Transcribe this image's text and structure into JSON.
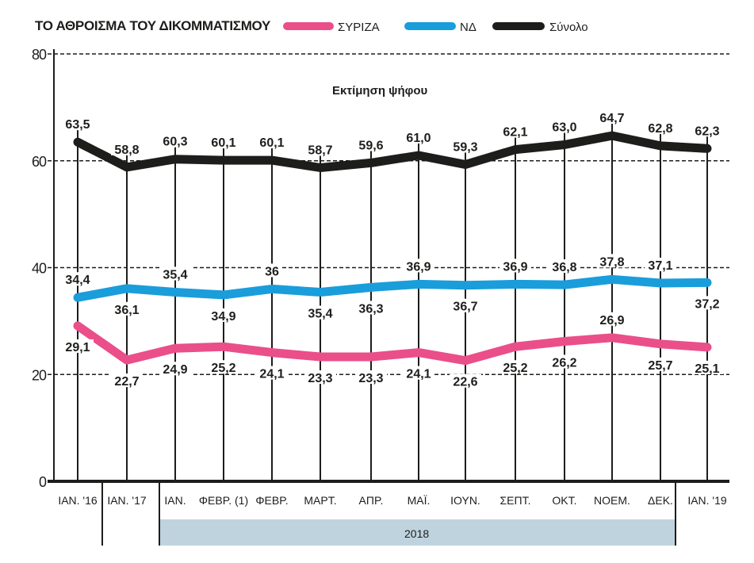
{
  "chart_data": {
    "type": "line",
    "title": "ΤΟ ΑΘΡΟΙΣΜΑ ΤΟΥ ΔΙΚΟΜΜΑΤΙΣΜΟΥ",
    "subtitle": "Εκτίμηση ψήφου",
    "xlabel": "",
    "ylabel": "",
    "ylim": [
      0,
      80
    ],
    "yticks": [
      0,
      20,
      40,
      60,
      80
    ],
    "grid": "horizontal-dashed",
    "legend_position": "top",
    "categories": [
      "ΙΑΝ. '16",
      "ΙΑΝ. '17",
      "ΙΑΝ.",
      "ΦΕΒΡ. (1)",
      "ΦΕΒΡ.",
      "ΜΑΡΤ.",
      "ΑΠΡ.",
      "ΜΑΪ.",
      "ΙΟΥΝ.",
      "ΣΕΠΤ.",
      "ΟΚΤ.",
      "ΝΟΕΜ.",
      "ΔΕΚ.",
      "ΙΑΝ. '19"
    ],
    "category_groups": [
      {
        "label": "2018",
        "from_index": 2,
        "to_index": 12
      }
    ],
    "series": [
      {
        "name": "ΣΥΡΙΖΑ",
        "color": "#ea4f8a",
        "values": [
          29.1,
          22.7,
          24.9,
          25.2,
          24.1,
          23.3,
          23.3,
          24.1,
          22.6,
          25.2,
          26.2,
          26.9,
          25.7,
          25.1
        ],
        "labels": [
          "29,1",
          "22,7",
          "24,9",
          "25,2",
          "24,1",
          "23,3",
          "23,3",
          "24,1",
          "22,6",
          "25,2",
          "26,2",
          "26,9",
          "25,7",
          "25,1"
        ],
        "label_side": [
          "below",
          "below",
          "below",
          "below",
          "below",
          "below",
          "below",
          "below",
          "below",
          "below",
          "below",
          "above",
          "below",
          "below"
        ]
      },
      {
        "name": "ΝΔ",
        "color": "#1a9ddb",
        "values": [
          34.4,
          36.1,
          35.4,
          34.9,
          36,
          35.4,
          36.3,
          36.9,
          36.7,
          36.9,
          36.8,
          37.8,
          37.1,
          37.2
        ],
        "labels": [
          "34,4",
          "36,1",
          "35,4",
          "34,9",
          "36",
          "35,4",
          "36,3",
          "36,9",
          "36,7",
          "36,9",
          "36,8",
          "37,8",
          "37,1",
          "37,2"
        ],
        "label_side": [
          "above",
          "below",
          "above",
          "below",
          "above",
          "below",
          "below",
          "above",
          "below",
          "above",
          "above",
          "above",
          "above",
          "below"
        ]
      },
      {
        "name": "Σύνολο",
        "color": "#1d1d1b",
        "values": [
          63.5,
          58.8,
          60.3,
          60.1,
          60.1,
          58.7,
          59.6,
          61.0,
          59.3,
          62.1,
          63.0,
          64.7,
          62.8,
          62.3
        ],
        "labels": [
          "63,5",
          "58,8",
          "60,3",
          "60,1",
          "60,1",
          "58,7",
          "59,6",
          "61,0",
          "59,3",
          "62,1",
          "63,0",
          "64,7",
          "62,8",
          "62,3"
        ],
        "label_side": [
          "above",
          "above",
          "above",
          "above",
          "above",
          "above",
          "above",
          "above",
          "above",
          "above",
          "above",
          "above",
          "above",
          "above"
        ]
      }
    ],
    "band_color": "#bfd3de"
  }
}
